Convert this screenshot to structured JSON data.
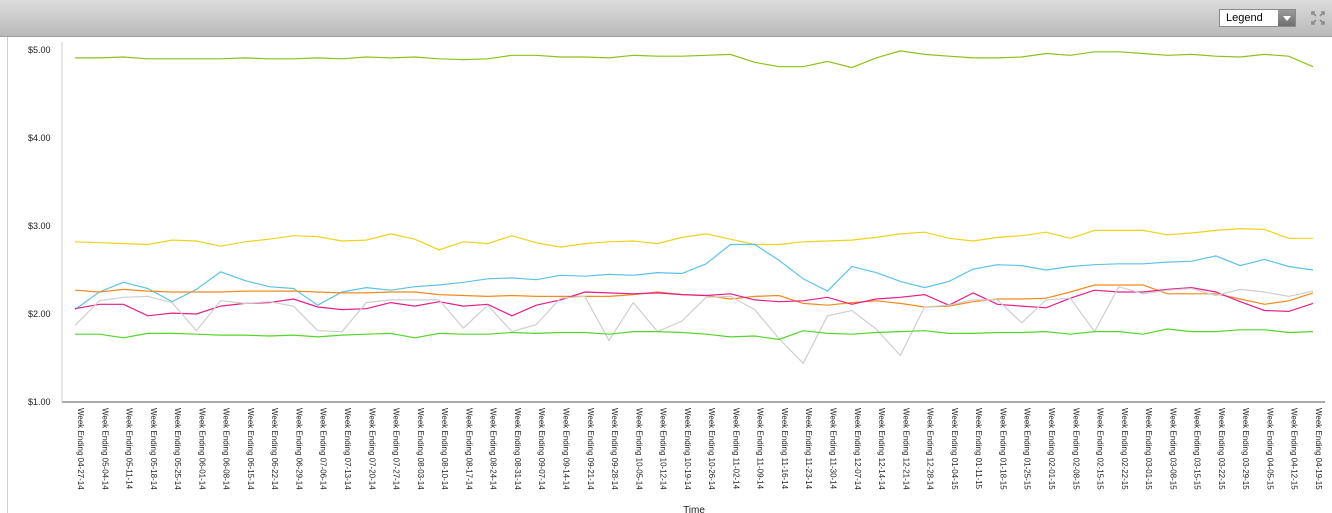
{
  "toolbar": {
    "legend_label": "Legend",
    "dropdown_icon": "chevron-down-icon",
    "expand_icon": "expand-icon"
  },
  "chart_data": {
    "type": "line",
    "title": "",
    "xlabel": "Time",
    "ylabel": "",
    "ylim": [
      1.0,
      5.0
    ],
    "yticks": [
      "$1.00",
      "$2.00",
      "$3.00",
      "$4.00",
      "$5.00"
    ],
    "grid": false,
    "categories": [
      "Week Ending 04-27-14",
      "Week Ending 05-04-14",
      "Week Ending 05-11-14",
      "Week Ending 05-18-14",
      "Week Ending 05-25-14",
      "Week Ending 06-01-14",
      "Week Ending 06-08-14",
      "Week Ending 06-15-14",
      "Week Ending 06-22-14",
      "Week Ending 06-29-14",
      "Week Ending 07-06-14",
      "Week Ending 07-13-14",
      "Week Ending 07-20-14",
      "Week Ending 07-27-14",
      "Week Ending 08-03-14",
      "Week Ending 08-10-14",
      "Week Ending 08-17-14",
      "Week Ending 08-24-14",
      "Week Ending 08-31-14",
      "Week Ending 09-07-14",
      "Week Ending 09-14-14",
      "Week Ending 09-21-14",
      "Week Ending 09-28-14",
      "Week Ending 10-05-14",
      "Week Ending 10-12-14",
      "Week Ending 10-19-14",
      "Week Ending 10-26-14",
      "Week Ending 11-02-14",
      "Week Ending 11-09-14",
      "Week Ending 11-16-14",
      "Week Ending 11-23-14",
      "Week Ending 11-30-14",
      "Week Ending 12-07-14",
      "Week Ending 12-14-14",
      "Week Ending 12-21-14",
      "Week Ending 12-28-14",
      "Week Ending 01-04-15",
      "Week Ending 01-11-15",
      "Week Ending 01-18-15",
      "Week Ending 01-25-15",
      "Week Ending 02-01-15",
      "Week Ending 02-08-15",
      "Week Ending 02-15-15",
      "Week Ending 02-22-15",
      "Week Ending 03-01-15",
      "Week Ending 03-08-15",
      "Week Ending 03-15-15",
      "Week Ending 03-22-15",
      "Week Ending 03-29-15",
      "Week Ending 04-05-15",
      "Week Ending 04-12-15",
      "Week Ending 04-19-15"
    ],
    "series": [
      {
        "color": "#8cc21a",
        "values": [
          4.91,
          4.91,
          4.92,
          4.9,
          4.9,
          4.9,
          4.9,
          4.91,
          4.9,
          4.9,
          4.91,
          4.9,
          4.92,
          4.91,
          4.92,
          4.9,
          4.89,
          4.9,
          4.94,
          4.94,
          4.92,
          4.92,
          4.91,
          4.94,
          4.93,
          4.93,
          4.94,
          4.95,
          4.86,
          4.81,
          4.81,
          4.87,
          4.8,
          4.91,
          4.99,
          4.95,
          4.93,
          4.91,
          4.91,
          4.92,
          4.96,
          4.94,
          4.98,
          4.98,
          4.96,
          4.94,
          4.95,
          4.93,
          4.92,
          4.95,
          4.93,
          4.81
        ]
      },
      {
        "color": "#f2d21a",
        "values": [
          2.82,
          2.81,
          2.8,
          2.79,
          2.84,
          2.83,
          2.77,
          2.82,
          2.85,
          2.89,
          2.88,
          2.83,
          2.84,
          2.91,
          2.85,
          2.73,
          2.82,
          2.8,
          2.89,
          2.81,
          2.76,
          2.8,
          2.82,
          2.83,
          2.8,
          2.87,
          2.91,
          2.85,
          2.79,
          2.79,
          2.82,
          2.83,
          2.84,
          2.87,
          2.91,
          2.93,
          2.86,
          2.83,
          2.87,
          2.89,
          2.93,
          2.86,
          2.95,
          2.95,
          2.95,
          2.9,
          2.92,
          2.95,
          2.97,
          2.96,
          2.86,
          2.86
        ]
      },
      {
        "color": "#5cc3e8",
        "values": [
          2.05,
          2.25,
          2.36,
          2.29,
          2.14,
          2.28,
          2.48,
          2.38,
          2.31,
          2.29,
          2.1,
          2.25,
          2.3,
          2.27,
          2.31,
          2.33,
          2.36,
          2.4,
          2.41,
          2.39,
          2.44,
          2.43,
          2.45,
          2.44,
          2.47,
          2.46,
          2.57,
          2.79,
          2.79,
          2.61,
          2.4,
          2.26,
          2.54,
          2.47,
          2.37,
          2.3,
          2.37,
          2.51,
          2.56,
          2.55,
          2.5,
          2.54,
          2.56,
          2.57,
          2.57,
          2.59,
          2.6,
          2.66,
          2.55,
          2.62,
          2.54,
          2.5
        ]
      },
      {
        "color": "#f28a1e",
        "values": [
          2.27,
          2.25,
          2.28,
          2.26,
          2.25,
          2.25,
          2.25,
          2.26,
          2.26,
          2.26,
          2.25,
          2.24,
          2.24,
          2.25,
          2.25,
          2.22,
          2.21,
          2.2,
          2.21,
          2.2,
          2.2,
          2.2,
          2.2,
          2.22,
          2.25,
          2.22,
          2.21,
          2.17,
          2.2,
          2.21,
          2.12,
          2.1,
          2.13,
          2.15,
          2.12,
          2.08,
          2.09,
          2.14,
          2.17,
          2.17,
          2.18,
          2.25,
          2.33,
          2.33,
          2.33,
          2.23,
          2.23,
          2.23,
          2.17,
          2.11,
          2.15,
          2.24
        ]
      },
      {
        "color": "#e61e8c",
        "values": [
          2.06,
          2.11,
          2.11,
          1.98,
          2.01,
          2.0,
          2.09,
          2.12,
          2.13,
          2.17,
          2.08,
          2.05,
          2.06,
          2.13,
          2.09,
          2.14,
          2.09,
          2.11,
          1.98,
          2.1,
          2.16,
          2.25,
          2.24,
          2.23,
          2.24,
          2.22,
          2.21,
          2.23,
          2.16,
          2.14,
          2.15,
          2.19,
          2.11,
          2.17,
          2.19,
          2.22,
          2.1,
          2.24,
          2.11,
          2.09,
          2.07,
          2.18,
          2.27,
          2.25,
          2.25,
          2.28,
          2.3,
          2.25,
          2.14,
          2.04,
          2.03,
          2.12
        ]
      },
      {
        "color": "#cfcfcf",
        "values": [
          1.87,
          2.15,
          2.19,
          2.2,
          2.13,
          1.81,
          2.15,
          2.12,
          2.14,
          2.09,
          1.81,
          1.8,
          2.13,
          2.16,
          2.16,
          2.16,
          1.84,
          2.1,
          1.8,
          1.88,
          2.18,
          2.2,
          1.7,
          2.13,
          1.8,
          1.92,
          2.19,
          2.2,
          2.05,
          1.72,
          1.44,
          1.98,
          2.04,
          1.83,
          1.53,
          2.08,
          2.1,
          2.16,
          2.16,
          1.9,
          2.16,
          2.18,
          1.8,
          2.31,
          2.23,
          2.27,
          2.29,
          2.21,
          2.28,
          2.25,
          2.2,
          2.26
        ]
      },
      {
        "color": "#55d62b",
        "values": [
          1.77,
          1.77,
          1.73,
          1.78,
          1.78,
          1.77,
          1.76,
          1.76,
          1.75,
          1.76,
          1.74,
          1.76,
          1.77,
          1.78,
          1.73,
          1.78,
          1.77,
          1.77,
          1.79,
          1.78,
          1.79,
          1.79,
          1.77,
          1.8,
          1.8,
          1.79,
          1.77,
          1.74,
          1.75,
          1.71,
          1.81,
          1.78,
          1.77,
          1.79,
          1.8,
          1.81,
          1.78,
          1.78,
          1.79,
          1.79,
          1.8,
          1.77,
          1.8,
          1.8,
          1.77,
          1.83,
          1.8,
          1.8,
          1.82,
          1.82,
          1.79,
          1.8
        ]
      }
    ]
  }
}
